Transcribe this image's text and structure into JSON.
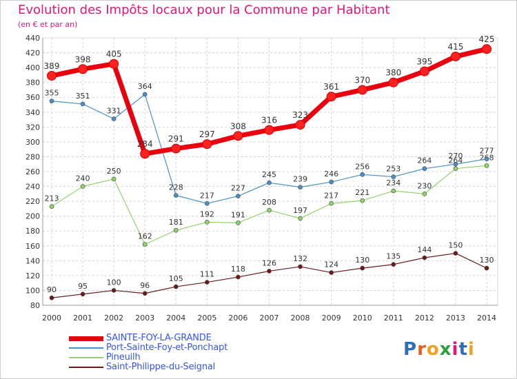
{
  "title": "Evolution des Impôts locaux pour la Commune par Habitant",
  "subtitle": "(en € et par an)",
  "logo": {
    "text": "Proxiti",
    "letters": [
      "P",
      "r",
      "o",
      "x",
      "i",
      "t",
      "i"
    ],
    "colors": [
      "#2f6db5",
      "#e85d1a",
      "#f2a11e",
      "#2e9e3c",
      "#e2157b",
      "#2f6db5",
      "#f2a11e"
    ]
  },
  "chart_data": {
    "type": "line",
    "title": "Evolution des Impôts locaux pour la Commune par Habitant",
    "subtitle": "(en € et par an)",
    "xlabel": "",
    "ylabel": "",
    "x": [
      "2000",
      "2001",
      "2002",
      "2003",
      "2004",
      "2005",
      "2006",
      "2007",
      "2008",
      "2009",
      "2010",
      "2011",
      "2012",
      "2013",
      "2014"
    ],
    "ylim": [
      80,
      440
    ],
    "yticks": [
      80,
      100,
      120,
      140,
      160,
      180,
      200,
      220,
      240,
      260,
      280,
      300,
      320,
      340,
      360,
      380,
      400,
      420,
      440
    ],
    "grid": true,
    "legend_position": "bottom-left",
    "series": [
      {
        "name": "SAINTE-FOY-LA-GRANDE",
        "color": "#e8000e",
        "values": [
          389,
          398,
          405,
          284,
          291,
          297,
          308,
          316,
          323,
          361,
          370,
          380,
          395,
          415,
          425
        ]
      },
      {
        "name": "Port-Sainte-Foy-et-Ponchapt",
        "color": "#4a90c8",
        "values": [
          355,
          351,
          331,
          364,
          228,
          217,
          227,
          245,
          239,
          246,
          256,
          253,
          264,
          270,
          277
        ]
      },
      {
        "name": "Pineuilh",
        "color": "#8fd46a",
        "values": [
          213,
          240,
          250,
          162,
          181,
          192,
          191,
          208,
          197,
          217,
          221,
          234,
          230,
          264,
          268
        ]
      },
      {
        "name": "Saint-Philippe-du-Seignal",
        "color": "#6b1a1a",
        "values": [
          90,
          95,
          100,
          96,
          105,
          111,
          118,
          126,
          132,
          124,
          130,
          135,
          144,
          150,
          130
        ]
      }
    ]
  }
}
